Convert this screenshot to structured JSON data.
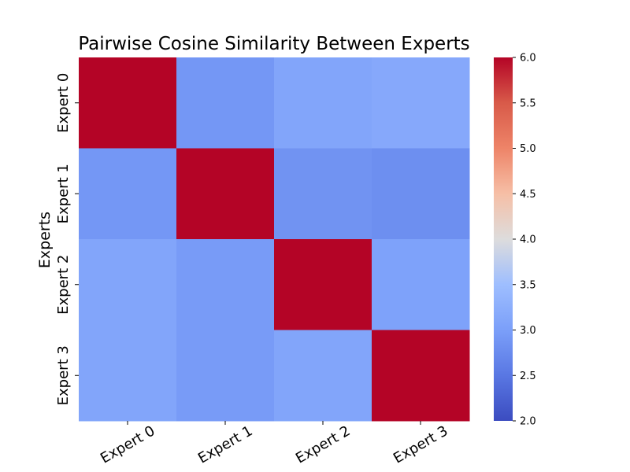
{
  "chart_data": {
    "type": "heatmap",
    "title": "Pairwise Cosine Similarity Between Experts",
    "xlabel": "",
    "ylabel": "Experts",
    "x_categories": [
      "Expert 0",
      "Expert 1",
      "Expert 2",
      "Expert 3"
    ],
    "y_categories": [
      "Expert 0",
      "Expert 1",
      "Expert 2",
      "Expert 3"
    ],
    "values": [
      [
        6.0,
        2.9,
        3.1,
        3.15
      ],
      [
        2.9,
        6.0,
        2.85,
        2.8
      ],
      [
        3.1,
        2.95,
        6.0,
        3.05
      ],
      [
        3.1,
        2.95,
        3.1,
        6.0
      ]
    ],
    "colorbar": {
      "range": [
        2.0,
        6.0
      ],
      "ticks": [
        "2.0",
        "2.5",
        "3.0",
        "3.5",
        "4.0",
        "4.5",
        "5.0",
        "5.5",
        "6.0"
      ],
      "colormap": "coolwarm"
    }
  }
}
